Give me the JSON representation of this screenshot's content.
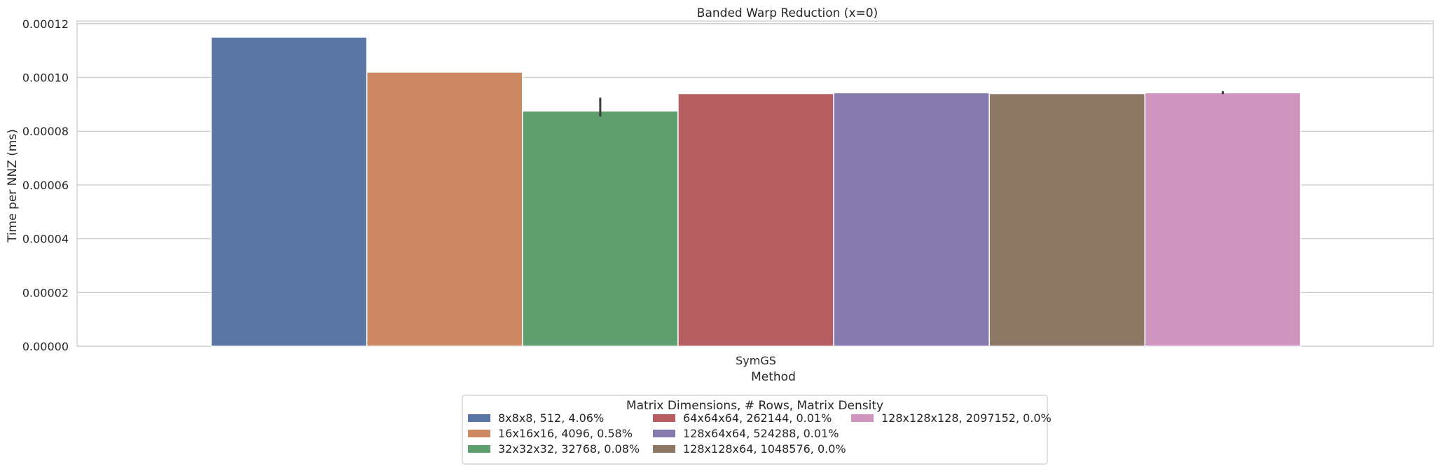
{
  "chart_data": {
    "type": "bar",
    "title": "Banded Warp Reduction (x=0)",
    "xlabel": "Method",
    "ylabel": "Time per NNZ (ms)",
    "categories": [
      "SymGS"
    ],
    "ylim": [
      0,
      0.000121
    ],
    "yticks": [
      "0.00000",
      "0.00002",
      "0.00004",
      "0.00006",
      "0.00008",
      "0.00010",
      "0.00012"
    ],
    "ytick_values": [
      0,
      2e-05,
      4e-05,
      6e-05,
      8e-05,
      0.0001,
      0.00012
    ],
    "grid": true,
    "legend": {
      "title": "Matrix Dimensions, # Rows, Matrix Density",
      "placement": "bottom-center",
      "columns": 3
    },
    "series": [
      {
        "name": "8x8x8, 512, 4.06%",
        "color": "#5875a4",
        "values": [
          0.000115
        ],
        "err": null
      },
      {
        "name": "16x16x16, 4096, 0.58%",
        "color": "#cc8963",
        "values": [
          0.000102
        ],
        "err": null
      },
      {
        "name": "32x32x32, 32768, 0.08%",
        "color": "#5f9e6e",
        "values": [
          8.75e-05
        ],
        "err": [
          8.55e-05,
          9.25e-05
        ]
      },
      {
        "name": "64x64x64, 262144, 0.01%",
        "color": "#b55d60",
        "values": [
          9.4e-05
        ],
        "err": null
      },
      {
        "name": "128x64x64, 524288, 0.01%",
        "color": "#857aab",
        "values": [
          9.43e-05
        ],
        "err": null
      },
      {
        "name": "128x128x64, 1048576, 0.0%",
        "color": "#8d7866",
        "values": [
          9.4e-05
        ],
        "err": null
      },
      {
        "name": "128x128x128, 2097152, 0.0%",
        "color": "#d095bf",
        "values": [
          9.43e-05
        ],
        "err": [
          9.38e-05,
          9.49e-05
        ]
      }
    ]
  }
}
